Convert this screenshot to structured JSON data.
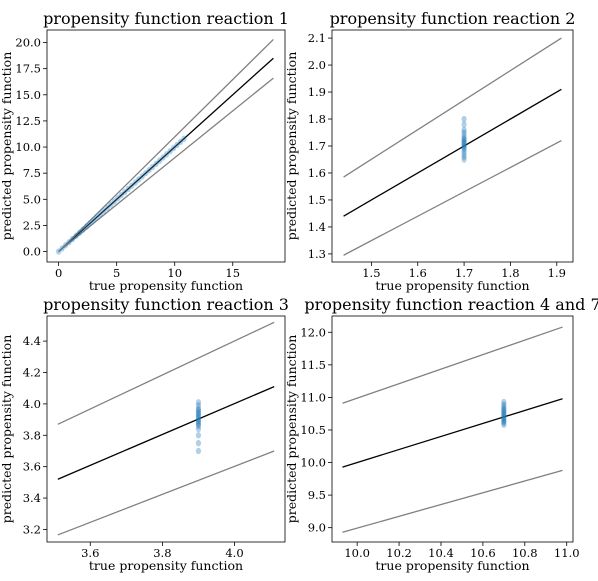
{
  "chart_data": [
    {
      "type": "scatter",
      "title": "propensity function reaction 1",
      "xlabel": "true propensity function",
      "ylabel": "predicted propensity function",
      "xlim": [
        -1.0,
        19.5
      ],
      "ylim": [
        -1.0,
        21.2
      ],
      "xticks": [
        0,
        5,
        10,
        15
      ],
      "xtick_labels": [
        "0",
        "5",
        "10",
        "15"
      ],
      "yticks": [
        0.0,
        2.5,
        5.0,
        7.5,
        10.0,
        12.5,
        15.0,
        17.5,
        20.0
      ],
      "ytick_labels": [
        "0.0",
        "2.5",
        "5.0",
        "7.5",
        "10.0",
        "12.5",
        "15.0",
        "17.5",
        "20.0"
      ],
      "grid": false,
      "lines": [
        {
          "role": "identity",
          "color": "#000000",
          "x": [
            0.0,
            18.5
          ],
          "y": [
            0.0,
            18.5
          ]
        },
        {
          "role": "upper-bound",
          "color": "#808080",
          "x": [
            0.0,
            18.5
          ],
          "y": [
            0.0,
            20.3
          ]
        },
        {
          "role": "lower-bound",
          "color": "#808080",
          "x": [
            0.0,
            18.5
          ],
          "y": [
            0.0,
            16.6
          ]
        }
      ],
      "points": {
        "color": "#1f77b4",
        "x": [
          0,
          0.3,
          0.6,
          0.9,
          1.2,
          1.5,
          1.8,
          2.1,
          2.4,
          2.7,
          3.0,
          3.3,
          3.6,
          3.9,
          4.2,
          4.5,
          4.8,
          5.1,
          5.4,
          5.7,
          6.0,
          6.3,
          6.6,
          6.9,
          7.2,
          7.5,
          7.8,
          8.1,
          8.4,
          8.7,
          9.0,
          9.3,
          9.6,
          9.9,
          10.2,
          10.5,
          10.8
        ],
        "y": [
          0,
          0.3,
          0.6,
          0.9,
          1.2,
          1.5,
          1.8,
          2.1,
          2.4,
          2.7,
          3.0,
          3.3,
          3.6,
          3.9,
          4.2,
          4.5,
          4.8,
          5.1,
          5.4,
          5.7,
          6.0,
          6.3,
          6.6,
          6.9,
          7.2,
          7.5,
          7.8,
          8.1,
          8.4,
          8.7,
          9.0,
          9.3,
          9.6,
          9.9,
          10.2,
          10.5,
          10.8
        ]
      }
    },
    {
      "type": "scatter",
      "title": "propensity function reaction 2",
      "xlabel": "true propensity function",
      "ylabel": "predicted propensity function",
      "xlim": [
        1.415,
        1.935
      ],
      "ylim": [
        1.27,
        2.13
      ],
      "xticks": [
        1.5,
        1.6,
        1.7,
        1.8,
        1.9
      ],
      "xtick_labels": [
        "1.5",
        "1.6",
        "1.7",
        "1.8",
        "1.9"
      ],
      "yticks": [
        1.3,
        1.4,
        1.5,
        1.6,
        1.7,
        1.8,
        1.9,
        2.0,
        2.1
      ],
      "ytick_labels": [
        "1.3",
        "1.4",
        "1.5",
        "1.6",
        "1.7",
        "1.8",
        "1.9",
        "2.0",
        "2.1"
      ],
      "grid": false,
      "lines": [
        {
          "role": "identity",
          "color": "#000000",
          "x": [
            1.44,
            1.91
          ],
          "y": [
            1.44,
            1.91
          ]
        },
        {
          "role": "upper-bound",
          "color": "#808080",
          "x": [
            1.44,
            1.91
          ],
          "y": [
            1.585,
            2.1
          ]
        },
        {
          "role": "lower-bound",
          "color": "#808080",
          "x": [
            1.44,
            1.91
          ],
          "y": [
            1.295,
            1.72
          ]
        }
      ],
      "points": {
        "color": "#1f77b4",
        "x": [
          1.7,
          1.7,
          1.7,
          1.7,
          1.7,
          1.7,
          1.7,
          1.7,
          1.7,
          1.7,
          1.7,
          1.7,
          1.7,
          1.7,
          1.7,
          1.7,
          1.7,
          1.7
        ],
        "y": [
          1.65,
          1.66,
          1.67,
          1.68,
          1.69,
          1.695,
          1.7,
          1.705,
          1.71,
          1.715,
          1.72,
          1.725,
          1.73,
          1.74,
          1.75,
          1.76,
          1.78,
          1.8
        ]
      }
    },
    {
      "type": "scatter",
      "title": "propensity function reaction 3",
      "xlabel": "true propensity function",
      "ylabel": "predicted propensity function",
      "xlim": [
        3.48,
        4.14
      ],
      "ylim": [
        3.12,
        4.56
      ],
      "xticks": [
        3.6,
        3.8,
        4.0
      ],
      "xtick_labels": [
        "3.6",
        "3.8",
        "4.0"
      ],
      "yticks": [
        3.2,
        3.4,
        3.6,
        3.8,
        4.0,
        4.2,
        4.4
      ],
      "ytick_labels": [
        "3.2",
        "3.4",
        "3.6",
        "3.8",
        "4.0",
        "4.2",
        "4.4"
      ],
      "grid": false,
      "lines": [
        {
          "role": "identity",
          "color": "#000000",
          "x": [
            3.51,
            4.11
          ],
          "y": [
            3.52,
            4.11
          ]
        },
        {
          "role": "upper-bound",
          "color": "#808080",
          "x": [
            3.51,
            4.11
          ],
          "y": [
            3.87,
            4.52
          ]
        },
        {
          "role": "lower-bound",
          "color": "#808080",
          "x": [
            3.51,
            4.11
          ],
          "y": [
            3.165,
            3.7
          ]
        }
      ],
      "points": {
        "color": "#1f77b4",
        "x": [
          3.9,
          3.9,
          3.9,
          3.9,
          3.9,
          3.9,
          3.9,
          3.9,
          3.9,
          3.9,
          3.9,
          3.9,
          3.9,
          3.9,
          3.9,
          3.9,
          3.9,
          3.9
        ],
        "y": [
          3.7,
          3.75,
          3.8,
          3.84,
          3.86,
          3.87,
          3.88,
          3.89,
          3.9,
          3.91,
          3.92,
          3.93,
          3.94,
          3.95,
          3.96,
          3.97,
          3.99,
          4.01
        ]
      }
    },
    {
      "type": "scatter",
      "title": "propensity function reaction 4 and 7",
      "xlabel": "true propensity function",
      "ylabel": "predicted propensity function",
      "xlim": [
        9.88,
        11.03
      ],
      "ylim": [
        8.78,
        12.25
      ],
      "xticks": [
        10.0,
        10.2,
        10.4,
        10.6,
        10.8,
        11.0
      ],
      "xtick_labels": [
        "10.0",
        "10.2",
        "10.4",
        "10.6",
        "10.8",
        "11.0"
      ],
      "yticks": [
        9.0,
        9.5,
        10.0,
        10.5,
        11.0,
        11.5,
        12.0
      ],
      "ytick_labels": [
        "9.0",
        "9.5",
        "10.0",
        "10.5",
        "11.0",
        "11.5",
        "12.0"
      ],
      "grid": false,
      "lines": [
        {
          "role": "identity",
          "color": "#000000",
          "x": [
            9.93,
            10.98
          ],
          "y": [
            9.93,
            10.98
          ]
        },
        {
          "role": "upper-bound",
          "color": "#808080",
          "x": [
            9.93,
            10.98
          ],
          "y": [
            10.91,
            12.08
          ]
        },
        {
          "role": "lower-bound",
          "color": "#808080",
          "x": [
            9.93,
            10.98
          ],
          "y": [
            8.93,
            9.88
          ]
        }
      ],
      "points": {
        "color": "#1f77b4",
        "x": [
          10.7,
          10.7,
          10.7,
          10.7,
          10.7,
          10.7,
          10.7,
          10.7,
          10.7,
          10.7,
          10.7,
          10.7,
          10.7,
          10.7,
          10.7,
          10.7
        ],
        "y": [
          10.58,
          10.61,
          10.63,
          10.65,
          10.67,
          10.69,
          10.71,
          10.73,
          10.75,
          10.77,
          10.79,
          10.81,
          10.83,
          10.86,
          10.89,
          10.93
        ]
      }
    }
  ]
}
